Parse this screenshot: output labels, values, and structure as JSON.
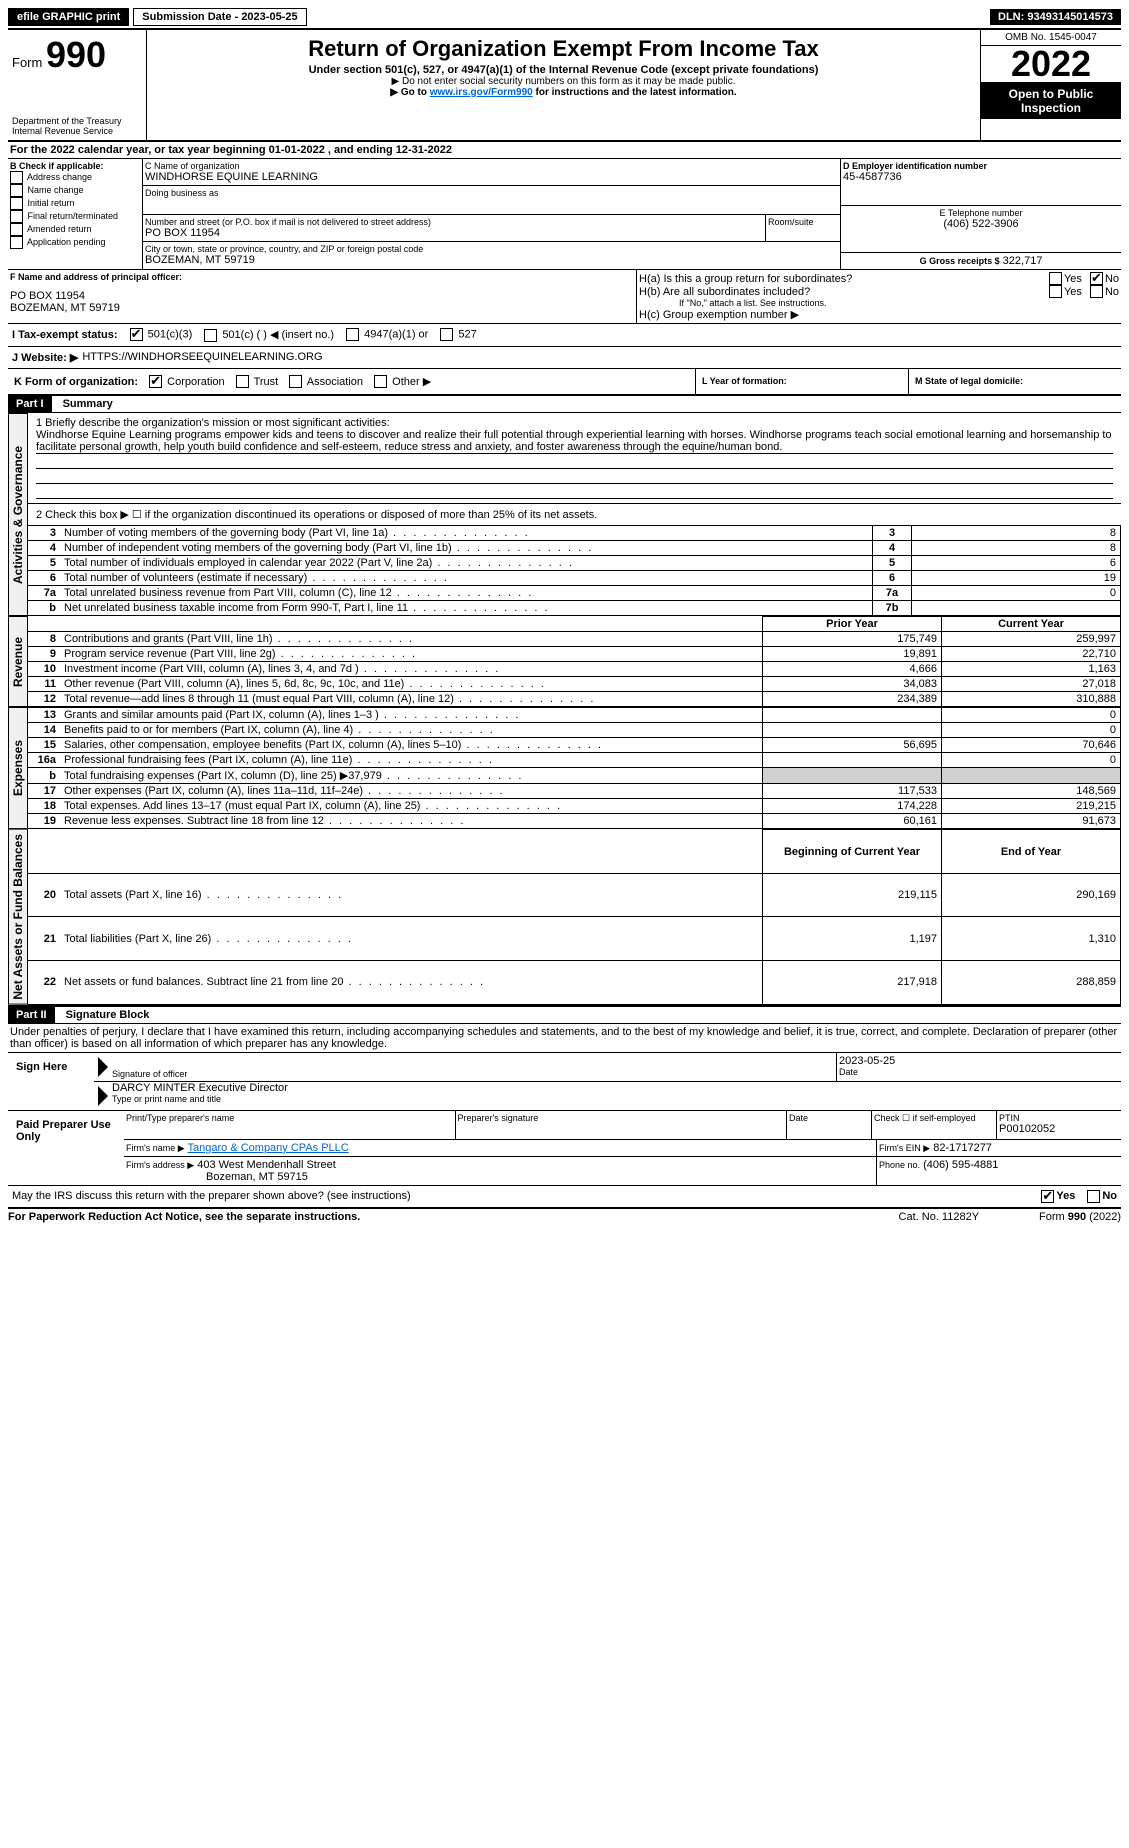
{
  "topbar": {
    "efile": "efile GRAPHIC print",
    "submission_label": "Submission Date - 2023-05-25",
    "dln": "DLN: 93493145014573"
  },
  "header": {
    "form_label": "Form",
    "form_number": "990",
    "dept": "Department of the Treasury",
    "irs": "Internal Revenue Service",
    "title": "Return of Organization Exempt From Income Tax",
    "subtitle": "Under section 501(c), 527, or 4947(a)(1) of the Internal Revenue Code (except private foundations)",
    "note1": "▶ Do not enter social security numbers on this form as it may be made public.",
    "note2_pre": "▶ Go to ",
    "note2_link": "www.irs.gov/Form990",
    "note2_post": " for instructions and the latest information.",
    "omb": "OMB No. 1545-0047",
    "year": "2022",
    "open": "Open to Public Inspection"
  },
  "line_a": "For the 2022 calendar year, or tax year beginning 01-01-2022    , and ending 12-31-2022",
  "box_b": {
    "title": "B Check if applicable:",
    "opts": [
      "Address change",
      "Name change",
      "Initial return",
      "Final return/terminated",
      "Amended return",
      "Application pending"
    ]
  },
  "box_c": {
    "label": "C Name of organization",
    "name": "WINDHORSE EQUINE LEARNING",
    "dba": "Doing business as",
    "street_label": "Number and street (or P.O. box if mail is not delivered to street address)",
    "room": "Room/suite",
    "street": "PO BOX 11954",
    "city_label": "City or town, state or province, country, and ZIP or foreign postal code",
    "city": "BOZEMAN, MT  59719"
  },
  "box_d": {
    "label": "D Employer identification number",
    "ein": "45-4587736"
  },
  "box_e": {
    "label": "E Telephone number",
    "phone": "(406) 522-3906"
  },
  "box_g": {
    "label": "G Gross receipts $",
    "amount": "322,717"
  },
  "box_f": {
    "label": "F Name and address of principal officer:",
    "line1": "PO BOX 11954",
    "line2": "BOZEMAN, MT  59719"
  },
  "box_h": {
    "a": "H(a)  Is this a group return for subordinates?",
    "b": "H(b)  Are all subordinates included?",
    "note": "If \"No,\" attach a list. See instructions.",
    "c": "H(c)  Group exemption number ▶",
    "yes": "Yes",
    "no": "No"
  },
  "box_i": {
    "label": "I  Tax-exempt status:",
    "o1": "501(c)(3)",
    "o2": "501(c) (   ) ◀ (insert no.)",
    "o3": "4947(a)(1) or",
    "o4": "527"
  },
  "box_j": {
    "label": "J  Website: ▶",
    "url": "HTTPS://WINDHORSEEQUINELEARNING.ORG"
  },
  "box_k": {
    "label": "K Form of organization:",
    "o1": "Corporation",
    "o2": "Trust",
    "o3": "Association",
    "o4": "Other ▶"
  },
  "box_l": "L Year of formation:",
  "box_m": "M State of legal domicile:",
  "part1": {
    "header": "Part I",
    "title": "Summary",
    "side_act": "Activities & Governance",
    "side_rev": "Revenue",
    "side_exp": "Expenses",
    "side_net": "Net Assets or Fund Balances",
    "l1_label": "1   Briefly describe the organization's mission or most significant activities:",
    "l1_text": "Windhorse Equine Learning programs empower kids and teens to discover and realize their full potential through experiential learning with horses. Windhorse programs teach social emotional learning and horsemanship to facilitate personal growth, help youth build confidence and self-esteem, reduce stress and anxiety, and foster awareness through the equine/human bond.",
    "l2": "2   Check this box ▶ ☐ if the organization discontinued its operations or disposed of more than 25% of its net assets.",
    "rows_gov": [
      {
        "n": "3",
        "label": "Number of voting members of the governing body (Part VI, line 1a)",
        "box": "3",
        "val": "8"
      },
      {
        "n": "4",
        "label": "Number of independent voting members of the governing body (Part VI, line 1b)",
        "box": "4",
        "val": "8"
      },
      {
        "n": "5",
        "label": "Total number of individuals employed in calendar year 2022 (Part V, line 2a)",
        "box": "5",
        "val": "6"
      },
      {
        "n": "6",
        "label": "Total number of volunteers (estimate if necessary)",
        "box": "6",
        "val": "19"
      },
      {
        "n": "7a",
        "label": "Total unrelated business revenue from Part VIII, column (C), line 12",
        "box": "7a",
        "val": "0"
      },
      {
        "n": "b",
        "label": "Net unrelated business taxable income from Form 990-T, Part I, line 11",
        "box": "7b",
        "val": ""
      }
    ],
    "hdr_prior": "Prior Year",
    "hdr_curr": "Current Year",
    "rows_rev": [
      {
        "n": "8",
        "label": "Contributions and grants (Part VIII, line 1h)",
        "p": "175,749",
        "c": "259,997"
      },
      {
        "n": "9",
        "label": "Program service revenue (Part VIII, line 2g)",
        "p": "19,891",
        "c": "22,710"
      },
      {
        "n": "10",
        "label": "Investment income (Part VIII, column (A), lines 3, 4, and 7d )",
        "p": "4,666",
        "c": "1,163"
      },
      {
        "n": "11",
        "label": "Other revenue (Part VIII, column (A), lines 5, 6d, 8c, 9c, 10c, and 11e)",
        "p": "34,083",
        "c": "27,018"
      },
      {
        "n": "12",
        "label": "Total revenue—add lines 8 through 11 (must equal Part VIII, column (A), line 12)",
        "p": "234,389",
        "c": "310,888"
      }
    ],
    "rows_exp": [
      {
        "n": "13",
        "label": "Grants and similar amounts paid (Part IX, column (A), lines 1–3 )",
        "p": "",
        "c": "0"
      },
      {
        "n": "14",
        "label": "Benefits paid to or for members (Part IX, column (A), line 4)",
        "p": "",
        "c": "0"
      },
      {
        "n": "15",
        "label": "Salaries, other compensation, employee benefits (Part IX, column (A), lines 5–10)",
        "p": "56,695",
        "c": "70,646"
      },
      {
        "n": "16a",
        "label": "Professional fundraising fees (Part IX, column (A), line 11e)",
        "p": "",
        "c": "0"
      },
      {
        "n": "b",
        "label": "Total fundraising expenses (Part IX, column (D), line 25) ▶37,979",
        "p": "shaded",
        "c": "shaded"
      },
      {
        "n": "17",
        "label": "Other expenses (Part IX, column (A), lines 11a–11d, 11f–24e)",
        "p": "117,533",
        "c": "148,569"
      },
      {
        "n": "18",
        "label": "Total expenses. Add lines 13–17 (must equal Part IX, column (A), line 25)",
        "p": "174,228",
        "c": "219,215"
      },
      {
        "n": "19",
        "label": "Revenue less expenses. Subtract line 18 from line 12",
        "p": "60,161",
        "c": "91,673"
      }
    ],
    "hdr_beg": "Beginning of Current Year",
    "hdr_end": "End of Year",
    "rows_net": [
      {
        "n": "20",
        "label": "Total assets (Part X, line 16)",
        "p": "219,115",
        "c": "290,169"
      },
      {
        "n": "21",
        "label": "Total liabilities (Part X, line 26)",
        "p": "1,197",
        "c": "1,310"
      },
      {
        "n": "22",
        "label": "Net assets or fund balances. Subtract line 21 from line 20",
        "p": "217,918",
        "c": "288,859"
      }
    ]
  },
  "part2": {
    "header": "Part II",
    "title": "Signature Block",
    "penalties": "Under penalties of perjury, I declare that I have examined this return, including accompanying schedules and statements, and to the best of my knowledge and belief, it is true, correct, and complete. Declaration of preparer (other than officer) is based on all information of which preparer has any knowledge.",
    "sign_here": "Sign Here",
    "sig_officer": "Signature of officer",
    "date": "Date",
    "sig_date": "2023-05-25",
    "name_title": "DARCY MINTER  Executive Director",
    "name_label": "Type or print name and title",
    "paid": "Paid Preparer Use Only",
    "prep_name_label": "Print/Type preparer's name",
    "prep_sig_label": "Preparer's signature",
    "check_self": "Check ☐ if self-employed",
    "ptin_label": "PTIN",
    "ptin": "P00102052",
    "firm_name_label": "Firm's name    ▶",
    "firm_name": "Tangaro & Company CPAs PLLC",
    "firm_ein_label": "Firm's EIN ▶",
    "firm_ein": "82-1717277",
    "firm_addr_label": "Firm's address ▶",
    "firm_addr1": "403 West Mendenhall Street",
    "firm_addr2": "Bozeman, MT  59715",
    "phone_label": "Phone no.",
    "phone": "(406) 595-4881",
    "discuss": "May the IRS discuss this return with the preparer shown above? (see instructions)",
    "yes": "Yes",
    "no": "No"
  },
  "footer": {
    "left": "For Paperwork Reduction Act Notice, see the separate instructions.",
    "cat": "Cat. No. 11282Y",
    "right": "Form 990 (2022)"
  }
}
